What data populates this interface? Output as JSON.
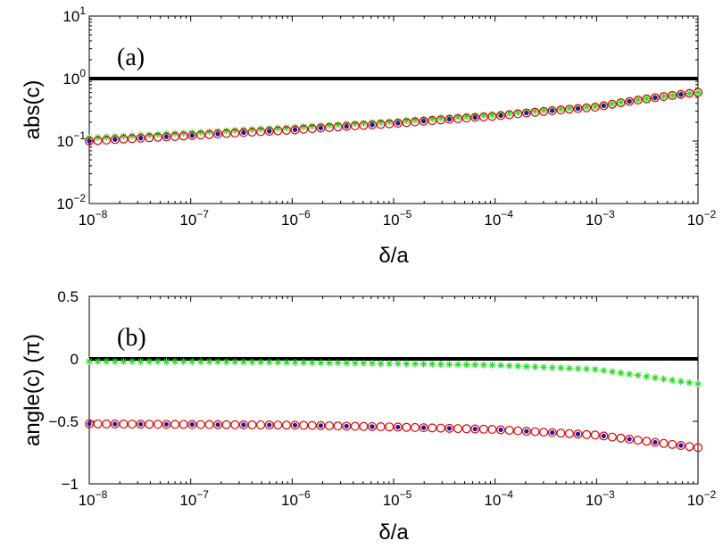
{
  "chart_data": [
    {
      "type": "scatter",
      "panel_label": "(a)",
      "xlabel": "δ/a",
      "ylabel": "abs(c)",
      "xscale": "log",
      "yscale": "log",
      "xlim": [
        1e-08,
        0.01
      ],
      "ylim": [
        0.01,
        10
      ],
      "x_ticks": [
        {
          "value": 1e-08,
          "base": "10",
          "exp": "−8"
        },
        {
          "value": 1e-07,
          "base": "10",
          "exp": "−7"
        },
        {
          "value": 1e-06,
          "base": "10",
          "exp": "−6"
        },
        {
          "value": 1e-05,
          "base": "10",
          "exp": "−5"
        },
        {
          "value": 0.0001,
          "base": "10",
          "exp": "−4"
        },
        {
          "value": 0.001,
          "base": "10",
          "exp": "−3"
        },
        {
          "value": 0.01,
          "base": "10",
          "exp": "−2"
        }
      ],
      "y_ticks": [
        {
          "value": 0.01,
          "base": "10",
          "exp": "−2"
        },
        {
          "value": 0.1,
          "base": "10",
          "exp": "−1"
        },
        {
          "value": 1,
          "base": "10",
          "exp": "0"
        },
        {
          "value": 10,
          "base": "10",
          "exp": "1"
        }
      ],
      "grid": false,
      "series": [
        {
          "marker": "hline",
          "color": "#000000",
          "x": [
            1e-08,
            0.01
          ],
          "values": [
            1,
            1
          ]
        },
        {
          "marker": "star",
          "color": "#22dd22",
          "x": [
            1e-08,
            1e-07,
            1e-06,
            1e-05,
            0.0001,
            0.001,
            0.01
          ],
          "values": [
            0.112,
            0.135,
            0.165,
            0.205,
            0.265,
            0.36,
            0.6
          ]
        },
        {
          "marker": "circle",
          "color": "#e00000",
          "x": [
            1e-08,
            1e-07,
            1e-06,
            1e-05,
            0.0001,
            0.001,
            0.01
          ],
          "values": [
            0.1,
            0.122,
            0.15,
            0.19,
            0.25,
            0.35,
            0.6
          ]
        },
        {
          "marker": "dot",
          "color": "#1a1aa8",
          "x": [
            1e-08,
            1e-07,
            1e-06,
            1e-05,
            0.0001,
            0.001,
            0.01
          ],
          "values": [
            0.1,
            0.122,
            0.15,
            0.19,
            0.25,
            0.35,
            0.6
          ]
        }
      ]
    },
    {
      "type": "scatter",
      "panel_label": "(b)",
      "xlabel": "δ/a",
      "ylabel": "angle(c) (π)",
      "xscale": "log",
      "yscale": "linear",
      "xlim": [
        1e-08,
        0.01
      ],
      "ylim": [
        -1,
        0.5
      ],
      "x_ticks": [
        {
          "value": 1e-08,
          "base": "10",
          "exp": "−8"
        },
        {
          "value": 1e-07,
          "base": "10",
          "exp": "−7"
        },
        {
          "value": 1e-06,
          "base": "10",
          "exp": "−6"
        },
        {
          "value": 1e-05,
          "base": "10",
          "exp": "−5"
        },
        {
          "value": 0.0001,
          "base": "10",
          "exp": "−4"
        },
        {
          "value": 0.001,
          "base": "10",
          "exp": "−3"
        },
        {
          "value": 0.01,
          "base": "10",
          "exp": "−2"
        }
      ],
      "y_ticks": [
        {
          "value": -1,
          "label": "−1"
        },
        {
          "value": -0.5,
          "label": "−0.5"
        },
        {
          "value": 0,
          "label": "0"
        },
        {
          "value": 0.5,
          "label": "0.5"
        }
      ],
      "grid": false,
      "series": [
        {
          "marker": "hline",
          "color": "#000000",
          "x": [
            1e-08,
            0.01
          ],
          "values": [
            0,
            0
          ]
        },
        {
          "marker": "star",
          "color": "#22dd22",
          "x": [
            1e-08,
            1e-07,
            1e-06,
            1e-05,
            0.0001,
            0.001,
            0.01
          ],
          "values": [
            -0.02,
            -0.022,
            -0.028,
            -0.037,
            -0.05,
            -0.085,
            -0.2
          ]
        },
        {
          "marker": "circle",
          "color": "#e00000",
          "x": [
            1e-08,
            1e-07,
            1e-06,
            1e-05,
            0.0001,
            0.001,
            0.01
          ],
          "values": [
            -0.52,
            -0.525,
            -0.53,
            -0.545,
            -0.565,
            -0.61,
            -0.71
          ]
        },
        {
          "marker": "dot",
          "color": "#1a1aa8",
          "x": [
            1e-08,
            1e-07,
            1e-06,
            1e-05,
            0.0001,
            0.001,
            0.01
          ],
          "values": [
            -0.52,
            -0.525,
            -0.53,
            -0.545,
            -0.565,
            -0.61,
            -0.71
          ]
        }
      ]
    }
  ]
}
